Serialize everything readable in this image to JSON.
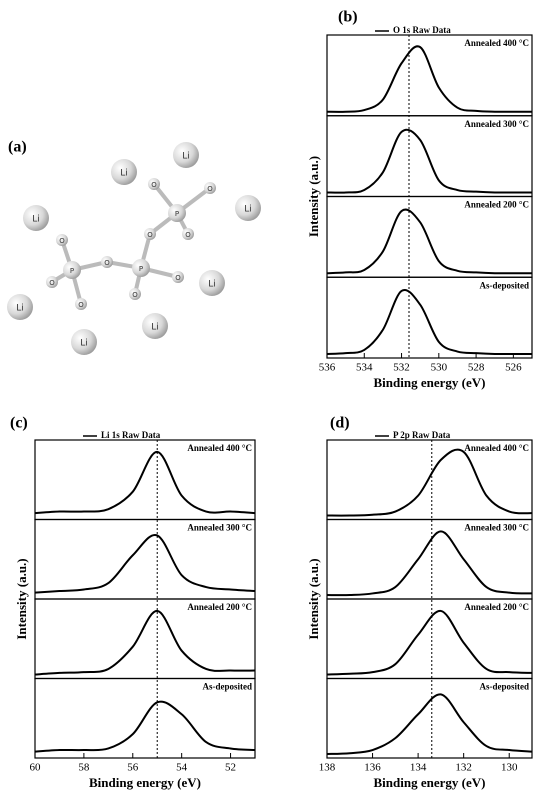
{
  "panel_a": {
    "label": "(a)",
    "atoms": [
      "Li",
      "Li",
      "Li",
      "Li",
      "Li",
      "Li",
      "Li",
      "Li",
      "O",
      "O",
      "O",
      "O",
      "O",
      "O",
      "O",
      "O",
      "O",
      "O",
      "P",
      "P",
      "P"
    ]
  },
  "chart_data": [
    {
      "type": "line",
      "panel_label": "(b)",
      "legend": "O 1s Raw Data",
      "xlabel": "Binding energy (eV)",
      "ylabel": "Intensity (a.u.)",
      "xlim": [
        536,
        525
      ],
      "xticks": [
        536,
        534,
        532,
        530,
        528,
        526
      ],
      "ylim": [
        0,
        1
      ],
      "reference_x": 531.6,
      "x": [
        536,
        535,
        534,
        533,
        532,
        531,
        530,
        529,
        528,
        527,
        526,
        525
      ],
      "subplots": [
        {
          "annotation": "Annealed 400 °C",
          "values": [
            0.05,
            0.05,
            0.07,
            0.2,
            0.65,
            0.85,
            0.35,
            0.1,
            0.06,
            0.05,
            0.05,
            0.05
          ]
        },
        {
          "annotation": "Annealed 300 °C",
          "values": [
            0.05,
            0.05,
            0.08,
            0.3,
            0.8,
            0.7,
            0.2,
            0.08,
            0.06,
            0.05,
            0.05,
            0.05
          ]
        },
        {
          "annotation": "Annealed 200 °C",
          "values": [
            0.05,
            0.06,
            0.09,
            0.32,
            0.82,
            0.68,
            0.2,
            0.08,
            0.06,
            0.05,
            0.05,
            0.05
          ]
        },
        {
          "annotation": "As-deposited",
          "values": [
            0.05,
            0.06,
            0.1,
            0.35,
            0.83,
            0.66,
            0.2,
            0.08,
            0.06,
            0.05,
            0.05,
            0.05
          ]
        }
      ]
    },
    {
      "type": "line",
      "panel_label": "(c)",
      "legend": "Li 1s Raw Data",
      "xlabel": "Binding energy (eV)",
      "ylabel": "Intensity (a.u.)",
      "xlim": [
        60,
        51
      ],
      "xticks": [
        60,
        58,
        56,
        54,
        52
      ],
      "ylim": [
        0,
        1
      ],
      "reference_x": 55,
      "x": [
        60,
        59,
        58,
        57,
        56,
        55,
        54,
        53,
        52,
        51
      ],
      "subplots": [
        {
          "annotation": "Annealed 400 °C",
          "values": [
            0.08,
            0.1,
            0.1,
            0.13,
            0.35,
            0.85,
            0.3,
            0.1,
            0.1,
            0.08
          ]
        },
        {
          "annotation": "Annealed 300 °C",
          "values": [
            0.08,
            0.1,
            0.12,
            0.2,
            0.55,
            0.8,
            0.3,
            0.15,
            0.12,
            0.1
          ]
        },
        {
          "annotation": "Annealed 200 °C",
          "values": [
            0.05,
            0.07,
            0.08,
            0.12,
            0.4,
            0.85,
            0.35,
            0.12,
            0.1,
            0.1
          ]
        },
        {
          "annotation": "As-deposited",
          "values": [
            0.08,
            0.1,
            0.1,
            0.12,
            0.3,
            0.7,
            0.55,
            0.2,
            0.12,
            0.1
          ]
        }
      ]
    },
    {
      "type": "line",
      "panel_label": "(d)",
      "legend": "P 2p Raw Data",
      "xlabel": "Binding energy (eV)",
      "ylabel": "Intensity (a.u.)",
      "xlim": [
        138,
        129
      ],
      "xticks": [
        138,
        136,
        134,
        132,
        130
      ],
      "ylim": [
        0,
        1
      ],
      "reference_x": 133.4,
      "x": [
        138,
        137,
        136,
        135,
        134,
        133,
        132,
        131,
        130,
        129
      ],
      "subplots": [
        {
          "annotation": "Annealed 400 °C",
          "values": [
            0.05,
            0.05,
            0.06,
            0.1,
            0.3,
            0.75,
            0.85,
            0.3,
            0.1,
            0.08
          ]
        },
        {
          "annotation": "Annealed 300 °C",
          "values": [
            0.05,
            0.05,
            0.07,
            0.15,
            0.5,
            0.85,
            0.5,
            0.15,
            0.08,
            0.07
          ]
        },
        {
          "annotation": "Annealed 200 °C",
          "values": [
            0.05,
            0.06,
            0.08,
            0.18,
            0.55,
            0.85,
            0.45,
            0.12,
            0.08,
            0.07
          ]
        },
        {
          "annotation": "As-deposited",
          "values": [
            0.05,
            0.06,
            0.1,
            0.25,
            0.55,
            0.8,
            0.45,
            0.15,
            0.1,
            0.08
          ]
        }
      ]
    }
  ]
}
